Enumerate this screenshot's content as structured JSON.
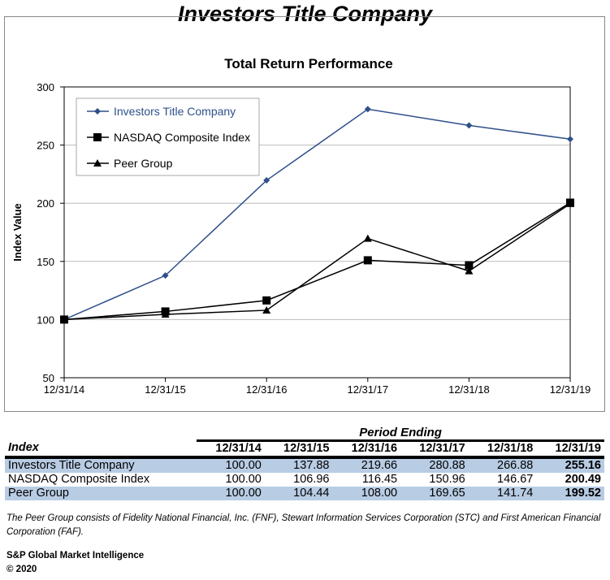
{
  "page_title": "Investors Title Company",
  "chart_data": {
    "type": "line",
    "title": "Total Return Performance",
    "ylabel": "Index Value",
    "xlabel": "",
    "categories": [
      "12/31/14",
      "12/31/15",
      "12/31/16",
      "12/31/17",
      "12/31/18",
      "12/31/19"
    ],
    "ylim": [
      50,
      300
    ],
    "yticks": [
      50,
      100,
      150,
      200,
      250,
      300
    ],
    "grid": true,
    "legend_position": "top-left",
    "series": [
      {
        "name": "Investors Title Company",
        "values": [
          100.0,
          137.88,
          219.66,
          280.88,
          266.88,
          255.16
        ],
        "color": "#2f4f8a",
        "marker": "diamond"
      },
      {
        "name": "NASDAQ Composite Index",
        "values": [
          100.0,
          106.96,
          116.45,
          150.96,
          146.67,
          200.49
        ],
        "color": "#000000",
        "marker": "square"
      },
      {
        "name": "Peer Group",
        "values": [
          100.0,
          104.44,
          108.0,
          169.65,
          141.74,
          199.52
        ],
        "color": "#000000",
        "marker": "triangle"
      }
    ]
  },
  "table": {
    "period_label": "Period Ending",
    "index_label": "Index",
    "columns": [
      "12/31/14",
      "12/31/15",
      "12/31/16",
      "12/31/17",
      "12/31/18",
      "12/31/19"
    ],
    "rows": [
      {
        "name": "Investors Title Company",
        "values": [
          "100.00",
          "137.88",
          "219.66",
          "280.88",
          "266.88",
          "255.16"
        ]
      },
      {
        "name": "NASDAQ Composite Index",
        "values": [
          "100.00",
          "106.96",
          "116.45",
          "150.96",
          "146.67",
          "200.49"
        ]
      },
      {
        "name": "Peer Group",
        "values": [
          "100.00",
          "104.44",
          "108.00",
          "169.65",
          "141.74",
          "199.52"
        ]
      }
    ]
  },
  "note": "The Peer Group consists of Fidelity National Financial, Inc. (FNF), Stewart Information Services Corporation (STC) and First American Financial Corporation (FAF).",
  "source": [
    "S&P Global Market Intelligence",
    "© 2020"
  ]
}
